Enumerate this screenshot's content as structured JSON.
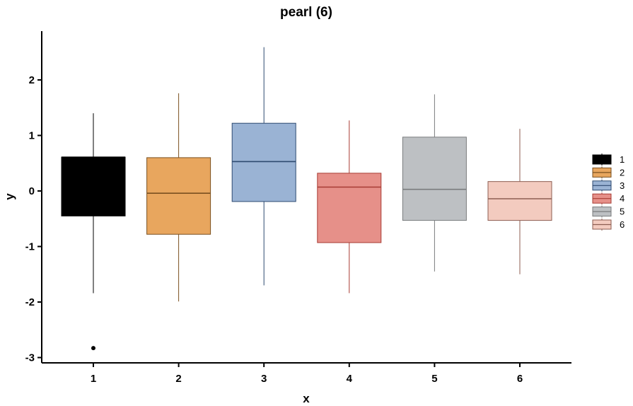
{
  "chart_data": {
    "type": "box",
    "title": "pearl (6)",
    "xlabel": "x",
    "ylabel": "y",
    "ylim": [
      -3.1,
      2.8
    ],
    "yticks": [
      -3,
      -2,
      -1,
      0,
      1,
      2
    ],
    "categories": [
      "1",
      "2",
      "3",
      "4",
      "5",
      "6"
    ],
    "grid": false,
    "legend_position": "right",
    "legend_entries": [
      "1",
      "2",
      "3",
      "4",
      "5",
      "6"
    ],
    "boxes": [
      {
        "category": "1",
        "min": -1.84,
        "q1": -0.45,
        "median": 0.61,
        "q3": 0.61,
        "max": 1.4,
        "outliers": [
          -2.83
        ],
        "fill": "#000000",
        "line": "#000000"
      },
      {
        "category": "2",
        "min": -1.99,
        "q1": -0.78,
        "median": -0.04,
        "q3": 0.6,
        "max": 1.76,
        "outliers": [],
        "fill": "#E8A65E",
        "line": "#7A5020"
      },
      {
        "category": "3",
        "min": -1.7,
        "q1": -0.19,
        "median": 0.53,
        "q3": 1.22,
        "max": 2.59,
        "outliers": [],
        "fill": "#9AB3D4",
        "line": "#2E4A70"
      },
      {
        "category": "4",
        "min": -1.84,
        "q1": -0.93,
        "median": 0.07,
        "q3": 0.32,
        "max": 1.27,
        "outliers": [],
        "fill": "#E69089",
        "line": "#A83C34"
      },
      {
        "category": "5",
        "min": -1.45,
        "q1": -0.53,
        "median": 0.03,
        "q3": 0.97,
        "max": 1.74,
        "outliers": [],
        "fill": "#BDC0C3",
        "line": "#7A7C7E"
      },
      {
        "category": "6",
        "min": -1.5,
        "q1": -0.53,
        "median": -0.14,
        "q3": 0.17,
        "max": 1.12,
        "outliers": [],
        "fill": "#F3CBBF",
        "line": "#8C5E52"
      }
    ]
  }
}
